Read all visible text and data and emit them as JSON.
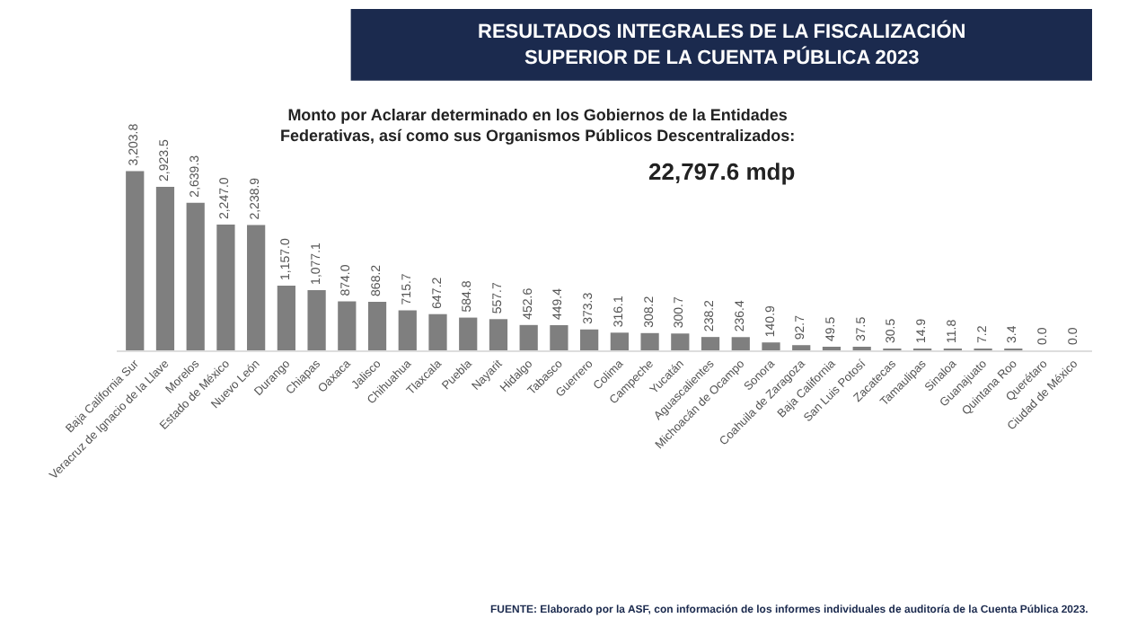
{
  "chart_data": {
    "type": "bar",
    "title": "RESULTADOS INTEGRALES DE LA FISCALIZACIÓN\nSUPERIOR DE LA CUENTA PÚBLICA 2023",
    "subtitle": "Monto por Aclarar determinado en los Gobiernos de la Entidades\nFederativas, así como sus Organismos Públicos Descentralizados:",
    "annotations": [
      "22,797.6 mdp",
      "FUENTE: Elaborado por la ASF, con información de los informes individuales de auditoría de la Cuenta Pública 2023."
    ],
    "categories": [
      "Baja California Sur",
      "Veracruz de Ignacio de la Llave",
      "Morelos",
      "Estado de México",
      "Nuevo León",
      "Durango",
      "Chiapas",
      "Oaxaca",
      "Jalisco",
      "Chihuahua",
      "Tlaxcala",
      "Puebla",
      "Nayarit",
      "Hidalgo",
      "Tabasco",
      "Guerrero",
      "Colima",
      "Campeche",
      "Yucatán",
      "Aguascalientes",
      "Michoacán de Ocampo",
      "Sonora",
      "Coahuila de Zaragoza",
      "Baja California",
      "San Luis Potosí",
      "Zacatecas",
      "Tamaulipas",
      "Sinaloa",
      "Guanajuato",
      "Quintana Roo",
      "Querétaro",
      "Ciudad de México"
    ],
    "values": [
      3203.8,
      2923.5,
      2639.3,
      2247.0,
      2238.9,
      1157.0,
      1077.1,
      874.0,
      868.2,
      715.7,
      647.2,
      584.8,
      557.7,
      452.6,
      449.4,
      373.3,
      316.1,
      308.2,
      300.7,
      238.2,
      236.4,
      140.9,
      92.7,
      49.5,
      37.5,
      30.5,
      14.9,
      11.8,
      7.2,
      3.4,
      0.0,
      0.0
    ],
    "value_labels": [
      "3,203.8",
      "2,923.5",
      "2,639.3",
      "2,247.0",
      "2,238.9",
      "1,157.0",
      "1,077.1",
      "874.0",
      "868.2",
      "715.7",
      "647.2",
      "584.8",
      "557.7",
      "452.6",
      "449.4",
      "373.3",
      "316.1",
      "308.2",
      "300.7",
      "238.2",
      "236.4",
      "140.9",
      "92.7",
      "49.5",
      "37.5",
      "30.5",
      "14.9",
      "11.8",
      "7.2",
      "3.4",
      "0.0",
      "0.0"
    ],
    "color": "#7f7f7f",
    "legend": false
  }
}
